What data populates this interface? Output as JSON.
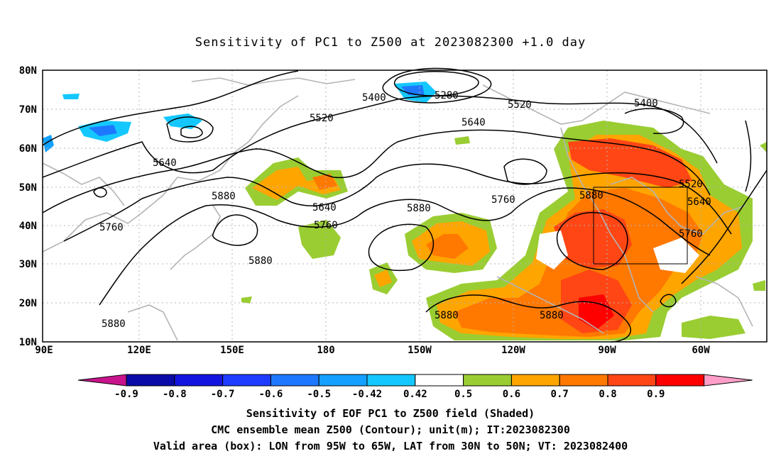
{
  "title": "Sensitivity of PC1 to Z500 at 2023082300 +1.0 day",
  "lat_labels": [
    "80N",
    "70N",
    "60N",
    "50N",
    "40N",
    "30N",
    "20N",
    "10N"
  ],
  "lon_labels": [
    "90E",
    "120E",
    "150E",
    "180",
    "150W",
    "120W",
    "90W",
    "60W"
  ],
  "contour_labels": [
    {
      "text": "5400"
    },
    {
      "text": "5280"
    },
    {
      "text": "5520"
    },
    {
      "text": "5520"
    },
    {
      "text": "5640"
    },
    {
      "text": "5400"
    },
    {
      "text": "5640"
    },
    {
      "text": "5880"
    },
    {
      "text": "5640"
    },
    {
      "text": "5760"
    },
    {
      "text": "5760"
    },
    {
      "text": "5880"
    },
    {
      "text": "5760"
    },
    {
      "text": "5880"
    },
    {
      "text": "5520"
    },
    {
      "text": "5640"
    },
    {
      "text": "5760"
    },
    {
      "text": "5880"
    },
    {
      "text": "5880"
    },
    {
      "text": "5880"
    },
    {
      "text": "5880"
    }
  ],
  "colorbar": {
    "labels": [
      "-0.9",
      "-0.8",
      "-0.7",
      "-0.6",
      "-0.5",
      "-0.42",
      "0.42",
      "0.5",
      "0.6",
      "0.7",
      "0.8",
      "0.9"
    ],
    "colors": [
      "#0a0aa8",
      "#1414e0",
      "#1e3cff",
      "#1e78ff",
      "#14a0ff",
      "#14c8ff",
      "#ffffff",
      "#9acd32",
      "#ffa500",
      "#ff7800",
      "#ff4614",
      "#ff0000"
    ],
    "low_extend_color": "#c8148c",
    "high_extend_color": "#ff9ec8"
  },
  "caption": {
    "line1": "Sensitivity of EOF PC1 to Z500 field (Shaded)",
    "line2": "CMC ensemble mean Z500 (Contour); unit(m); IT:2023082300",
    "line3": "Valid area (box): LON from 95W to 65W, LAT from 30N to 50N; VT: 2023082400"
  }
}
